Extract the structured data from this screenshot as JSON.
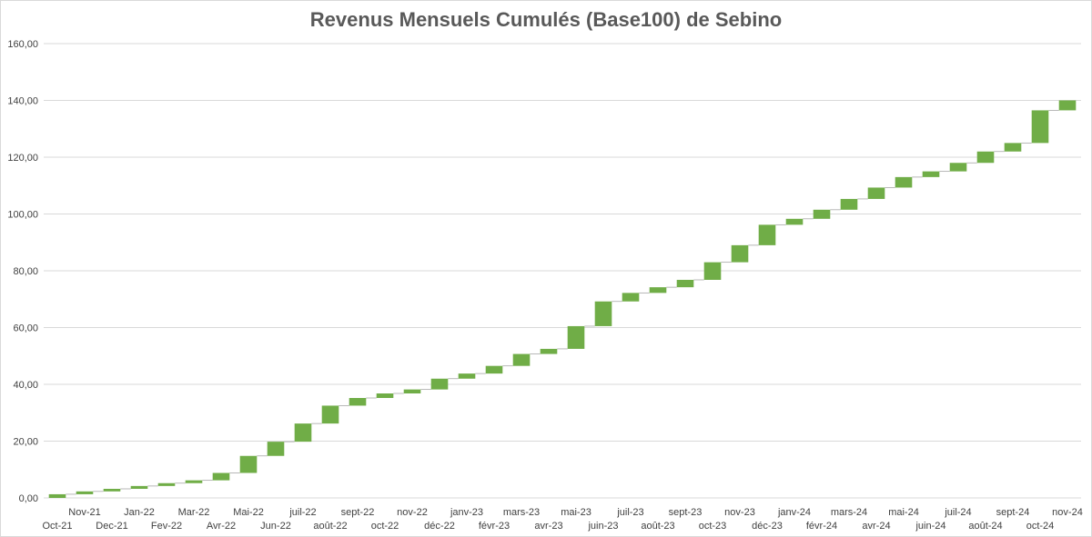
{
  "chart_data": {
    "type": "waterfall",
    "title": "Revenus Mensuels Cumulés (Base100) de Sebino",
    "xlabel": "",
    "ylabel": "",
    "ylim": [
      0,
      160
    ],
    "yticks": [
      "0,00",
      "20,00",
      "40,00",
      "60,00",
      "80,00",
      "100,00",
      "120,00",
      "140,00",
      "160,00"
    ],
    "grid": true,
    "legend": "none",
    "bar_color": "#70ad47",
    "categories": [
      "Oct-21",
      "Nov-21",
      "Dec-21",
      "Jan-22",
      "Fev-22",
      "Mar-22",
      "Avr-22",
      "Mai-22",
      "Jun-22",
      "juil-22",
      "août-22",
      "sept-22",
      "oct-22",
      "nov-22",
      "déc-22",
      "janv-23",
      "févr-23",
      "mars-23",
      "avr-23",
      "mai-23",
      "juin-23",
      "juil-23",
      "août-23",
      "sept-23",
      "oct-23",
      "nov-23",
      "déc-23",
      "janv-24",
      "févr-24",
      "mars-24",
      "avr-24",
      "mai-24",
      "juin-24",
      "juil-24",
      "août-24",
      "sept-24",
      "oct-24",
      "nov-24"
    ],
    "series": [
      {
        "start": [
          0.0,
          1.3,
          2.3,
          3.2,
          4.2,
          5.2,
          6.2,
          8.8,
          14.8,
          19.8,
          26.2,
          32.5,
          35.2,
          36.8,
          38.2,
          42.0,
          43.8,
          46.5,
          50.7,
          52.5,
          60.5,
          69.2,
          72.2,
          74.2,
          76.8,
          83.0,
          89.0,
          96.2,
          98.3,
          101.5,
          105.3,
          109.3,
          113.0,
          115.0,
          118.0,
          122.0,
          125.0,
          136.5
        ],
        "end": [
          1.3,
          2.3,
          3.2,
          4.2,
          5.2,
          6.2,
          8.8,
          14.8,
          19.8,
          26.2,
          32.5,
          35.2,
          36.8,
          38.2,
          42.0,
          43.8,
          46.5,
          50.7,
          52.5,
          60.5,
          69.2,
          72.2,
          74.2,
          76.8,
          83.0,
          89.0,
          96.2,
          98.3,
          101.5,
          105.3,
          109.3,
          113.0,
          115.0,
          118.0,
          122.0,
          125.0,
          136.5,
          140.0
        ]
      }
    ]
  }
}
